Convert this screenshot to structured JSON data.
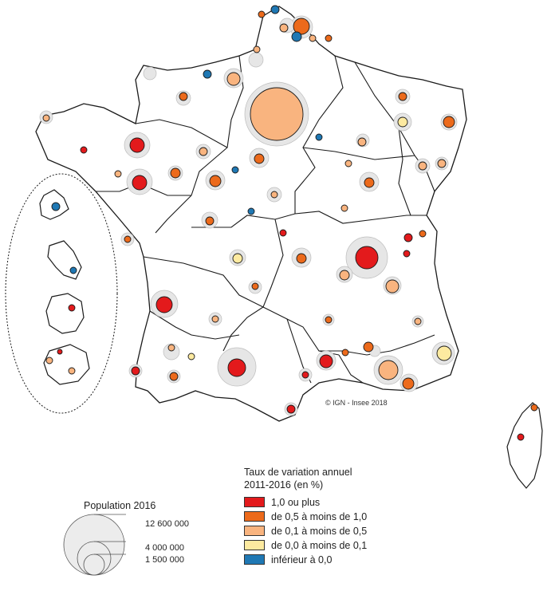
{
  "copyright": "© IGN - Insee 2018",
  "legend": {
    "title_line1": "Taux de variation annuel",
    "title_line2": "2011-2016 (en %)",
    "items": [
      {
        "label": "1,0 ou plus",
        "color": "#e31a1c"
      },
      {
        "label": "de 0,5 à moins de 1,0",
        "color": "#ec6a1b"
      },
      {
        "label": "de 0,1 à moins de 0,5",
        "color": "#f9b47f"
      },
      {
        "label": "de 0,0 à moins de 0,1",
        "color": "#fdeaa0"
      },
      {
        "label": "inférieur à 0,0",
        "color": "#1f78b4"
      }
    ]
  },
  "size_legend": {
    "title": "Population 2016",
    "values": [
      "12 600 000",
      "4 000 000",
      "1 500 000"
    ]
  },
  "colors": {
    "land": "#ffffff",
    "urban_area": "#e6e6e6",
    "border": "#1a1a1a"
  }
}
